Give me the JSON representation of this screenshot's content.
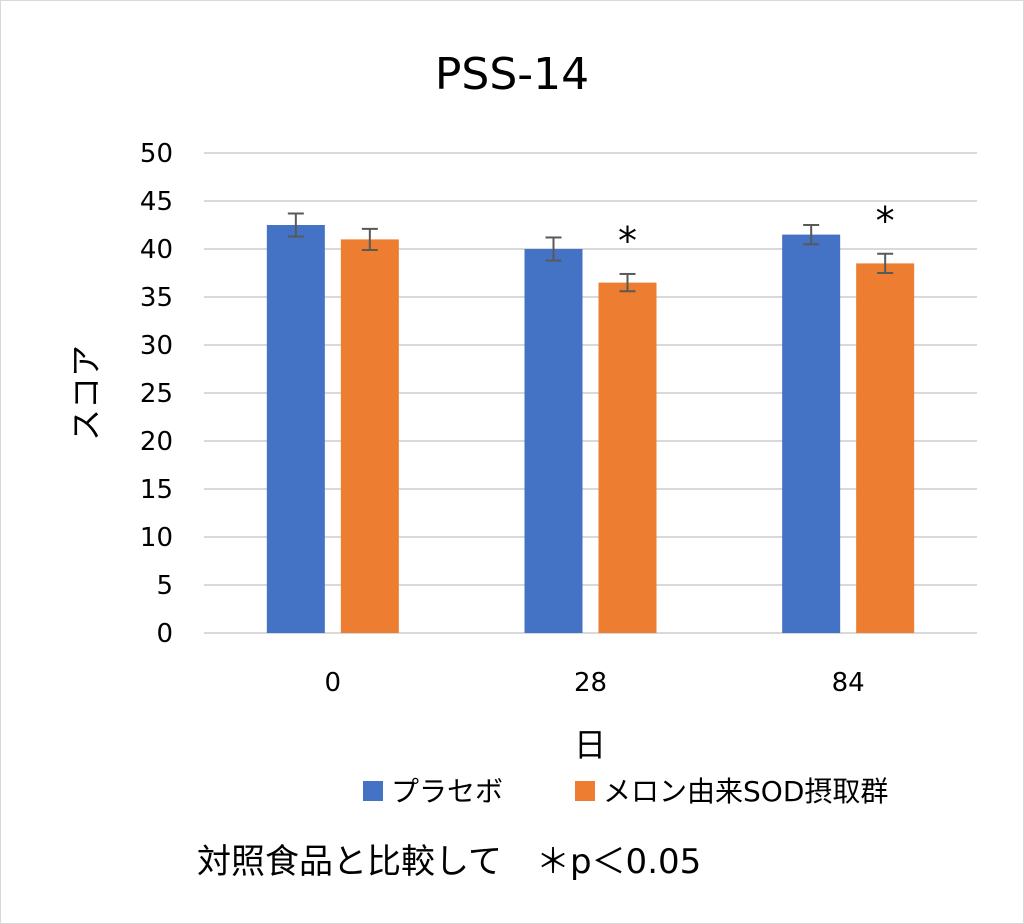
{
  "chart_data": {
    "type": "bar",
    "title": "PSS-14",
    "xlabel": "日",
    "ylabel": "スコア",
    "categories": [
      "0",
      "28",
      "84"
    ],
    "ylim": [
      0,
      50
    ],
    "yticks": [
      0,
      5,
      10,
      15,
      20,
      25,
      30,
      35,
      40,
      45,
      50
    ],
    "grid": true,
    "legend_position": "bottom",
    "series": [
      {
        "name": "プラセボ",
        "color": "#4472C4",
        "values": [
          42.5,
          40.0,
          41.5
        ],
        "errors": [
          1.2,
          1.2,
          1.0
        ]
      },
      {
        "name": "メロン由来SOD摂取群",
        "color": "#ED7D31",
        "values": [
          41.0,
          36.5,
          38.5
        ],
        "errors": [
          1.1,
          0.9,
          1.0
        ]
      }
    ],
    "significance": [
      {
        "category": "28",
        "label": "*"
      },
      {
        "category": "84",
        "label": "*"
      }
    ],
    "footnote": "対照食品と比較して　＊p＜0.05"
  }
}
